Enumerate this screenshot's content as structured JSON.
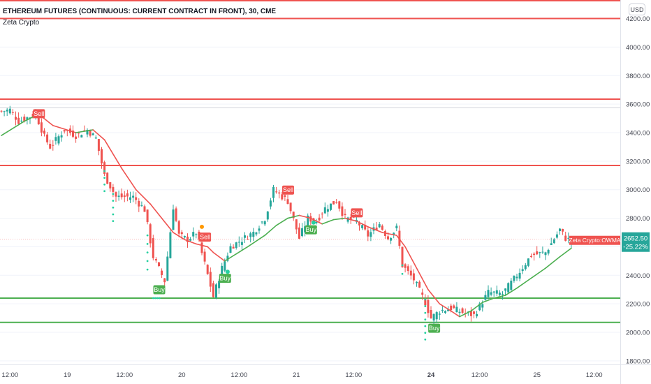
{
  "header": {
    "title": "ETHEREUM FUTURES (CONTINUOUS: CURRENT CONTRACT IN FRONT), 30, CME",
    "indicator": "Zeta Crypto",
    "currency": "USD"
  },
  "colors": {
    "up": "#26a69a",
    "down": "#ef5350",
    "wma_red": "#ef5350",
    "wma_green": "#4caf50",
    "level_red": "#ef5350",
    "level_green": "#4caf50",
    "buy": "#4caf50",
    "sell": "#ef5350",
    "dot_teal": "#26d0a0",
    "dot_orange": "#ff9800"
  },
  "chart_data": {
    "type": "candlestick",
    "y_ticks": [
      "4200.00",
      "4000.00",
      "3800.00",
      "3600.00",
      "3400.00",
      "3200.00",
      "3000.00",
      "2800.00",
      "2600.00",
      "2400.00",
      "2200.00",
      "2000.00",
      "1800.00"
    ],
    "y_tick_values": [
      4200,
      4000,
      3800,
      3600,
      3400,
      3200,
      3000,
      2800,
      2600,
      2400,
      2200,
      2000,
      1800
    ],
    "ylim": [
      1775,
      4330
    ],
    "x_ticks": [
      {
        "label": "12:00",
        "bar": 3
      },
      {
        "label": "19",
        "bar": 23
      },
      {
        "label": "12:00",
        "bar": 43
      },
      {
        "label": "20",
        "bar": 63
      },
      {
        "label": "12:00",
        "bar": 83
      },
      {
        "label": "21",
        "bar": 103
      },
      {
        "label": "12:00",
        "bar": 123
      },
      {
        "label": "24",
        "bar": 150,
        "bold": true
      },
      {
        "label": "12:00",
        "bar": 167
      },
      {
        "label": "25",
        "bar": 187
      },
      {
        "label": "12:00",
        "bar": 207
      }
    ],
    "levels": [
      {
        "value": 4325,
        "color": "red"
      },
      {
        "value": 4200,
        "color": "red"
      },
      {
        "value": 3635,
        "color": "red"
      },
      {
        "value": 3170,
        "color": "red"
      },
      {
        "value": 2240,
        "color": "green"
      },
      {
        "value": 2070,
        "color": "green"
      }
    ],
    "anchors": [
      [
        0,
        3550
      ],
      [
        3,
        3560
      ],
      [
        6,
        3480
      ],
      [
        12,
        3530
      ],
      [
        15,
        3370
      ],
      [
        17,
        3300
      ],
      [
        22,
        3420
      ],
      [
        26,
        3380
      ],
      [
        30,
        3420
      ],
      [
        33,
        3360
      ],
      [
        36,
        3100
      ],
      [
        40,
        2950
      ],
      [
        46,
        2950
      ],
      [
        50,
        2860
      ],
      [
        53,
        2530
      ],
      [
        57,
        2360
      ],
      [
        60,
        2880
      ],
      [
        62,
        2680
      ],
      [
        65,
        2650
      ],
      [
        68,
        2700
      ],
      [
        71,
        2480
      ],
      [
        74,
        2250
      ],
      [
        77,
        2450
      ],
      [
        80,
        2600
      ],
      [
        84,
        2650
      ],
      [
        88,
        2700
      ],
      [
        92,
        2800
      ],
      [
        95,
        3000
      ],
      [
        100,
        2920
      ],
      [
        104,
        2660
      ],
      [
        107,
        2800
      ],
      [
        110,
        2780
      ],
      [
        113,
        2870
      ],
      [
        117,
        2920
      ],
      [
        120,
        2800
      ],
      [
        124,
        2780
      ],
      [
        128,
        2680
      ],
      [
        132,
        2760
      ],
      [
        135,
        2660
      ],
      [
        138,
        2730
      ],
      [
        140,
        2470
      ],
      [
        144,
        2370
      ],
      [
        148,
        2210
      ],
      [
        150,
        2100
      ],
      [
        153,
        2150
      ],
      [
        157,
        2170
      ],
      [
        161,
        2140
      ],
      [
        165,
        2120
      ],
      [
        170,
        2280
      ],
      [
        175,
        2270
      ],
      [
        180,
        2400
      ],
      [
        185,
        2540
      ],
      [
        190,
        2560
      ],
      [
        195,
        2720
      ],
      [
        197,
        2660
      ],
      [
        199,
        2640
      ]
    ],
    "wma": [
      [
        0,
        3380
      ],
      [
        8,
        3480
      ],
      [
        13,
        3530
      ],
      [
        18,
        3450
      ],
      [
        26,
        3400
      ],
      [
        32,
        3420
      ],
      [
        36,
        3350
      ],
      [
        42,
        3150
      ],
      [
        47,
        3000
      ],
      [
        52,
        2900
      ],
      [
        56,
        2800
      ],
      [
        60,
        2700
      ],
      [
        64,
        2650
      ],
      [
        68,
        2620
      ],
      [
        72,
        2600
      ],
      [
        74,
        2560
      ],
      [
        78,
        2500
      ],
      [
        82,
        2550
      ],
      [
        86,
        2600
      ],
      [
        92,
        2680
      ],
      [
        96,
        2750
      ],
      [
        100,
        2800
      ],
      [
        104,
        2820
      ],
      [
        108,
        2800
      ],
      [
        112,
        2760
      ],
      [
        116,
        2790
      ],
      [
        120,
        2800
      ],
      [
        124,
        2780
      ],
      [
        128,
        2740
      ],
      [
        133,
        2700
      ],
      [
        138,
        2680
      ],
      [
        141,
        2600
      ],
      [
        145,
        2450
      ],
      [
        149,
        2300
      ],
      [
        153,
        2200
      ],
      [
        157,
        2150
      ],
      [
        160,
        2110
      ],
      [
        164,
        2150
      ],
      [
        168,
        2210
      ],
      [
        172,
        2240
      ],
      [
        176,
        2260
      ],
      [
        180,
        2310
      ],
      [
        185,
        2380
      ],
      [
        190,
        2450
      ],
      [
        195,
        2530
      ],
      [
        199,
        2590
      ]
    ],
    "wma_label": "Zeta Crypto:OWMA",
    "last_price": "2652.50",
    "last_change": "-25.22%",
    "last_price_value": 2652.5,
    "signals": [
      {
        "type": "sell",
        "label": "Sell",
        "bar": 13,
        "value": 3535
      },
      {
        "type": "buy",
        "label": "Buy",
        "bar": 55,
        "value": 2360
      },
      {
        "type": "sell",
        "label": "Sell",
        "bar": 71,
        "value": 2670
      },
      {
        "type": "buy",
        "label": "Buy",
        "bar": 78,
        "value": 2440
      },
      {
        "type": "sell",
        "label": "Sell",
        "bar": 100,
        "value": 3000
      },
      {
        "type": "buy",
        "label": "Buy",
        "bar": 108,
        "value": 2780
      },
      {
        "type": "sell",
        "label": "Sell",
        "bar": 124,
        "value": 2840
      },
      {
        "type": "buy",
        "label": "Buy",
        "bar": 151,
        "value": 2090
      }
    ],
    "dots": [
      {
        "type": "orange",
        "bar": 13,
        "value": 3545
      },
      {
        "type": "orange",
        "bar": 70,
        "value": 2740
      },
      {
        "type": "teal",
        "bar": 79,
        "value": 2425
      },
      {
        "type": "teal",
        "bar": 109,
        "value": 2770
      }
    ],
    "dot_columns": [
      {
        "bar": 36,
        "from": 3130,
        "to": 2990,
        "count": 4
      },
      {
        "bar": 39,
        "from": 2970,
        "to": 2780,
        "count": 5
      },
      {
        "bar": 51,
        "from": 2680,
        "to": 2440,
        "count": 5
      },
      {
        "bar": 53,
        "from": 2240,
        "to": 2240,
        "count": 4
      },
      {
        "bar": 140,
        "from": 2470,
        "to": 2410,
        "count": 2
      },
      {
        "bar": 148,
        "from": 2230,
        "to": 1950,
        "count": 7
      }
    ]
  }
}
